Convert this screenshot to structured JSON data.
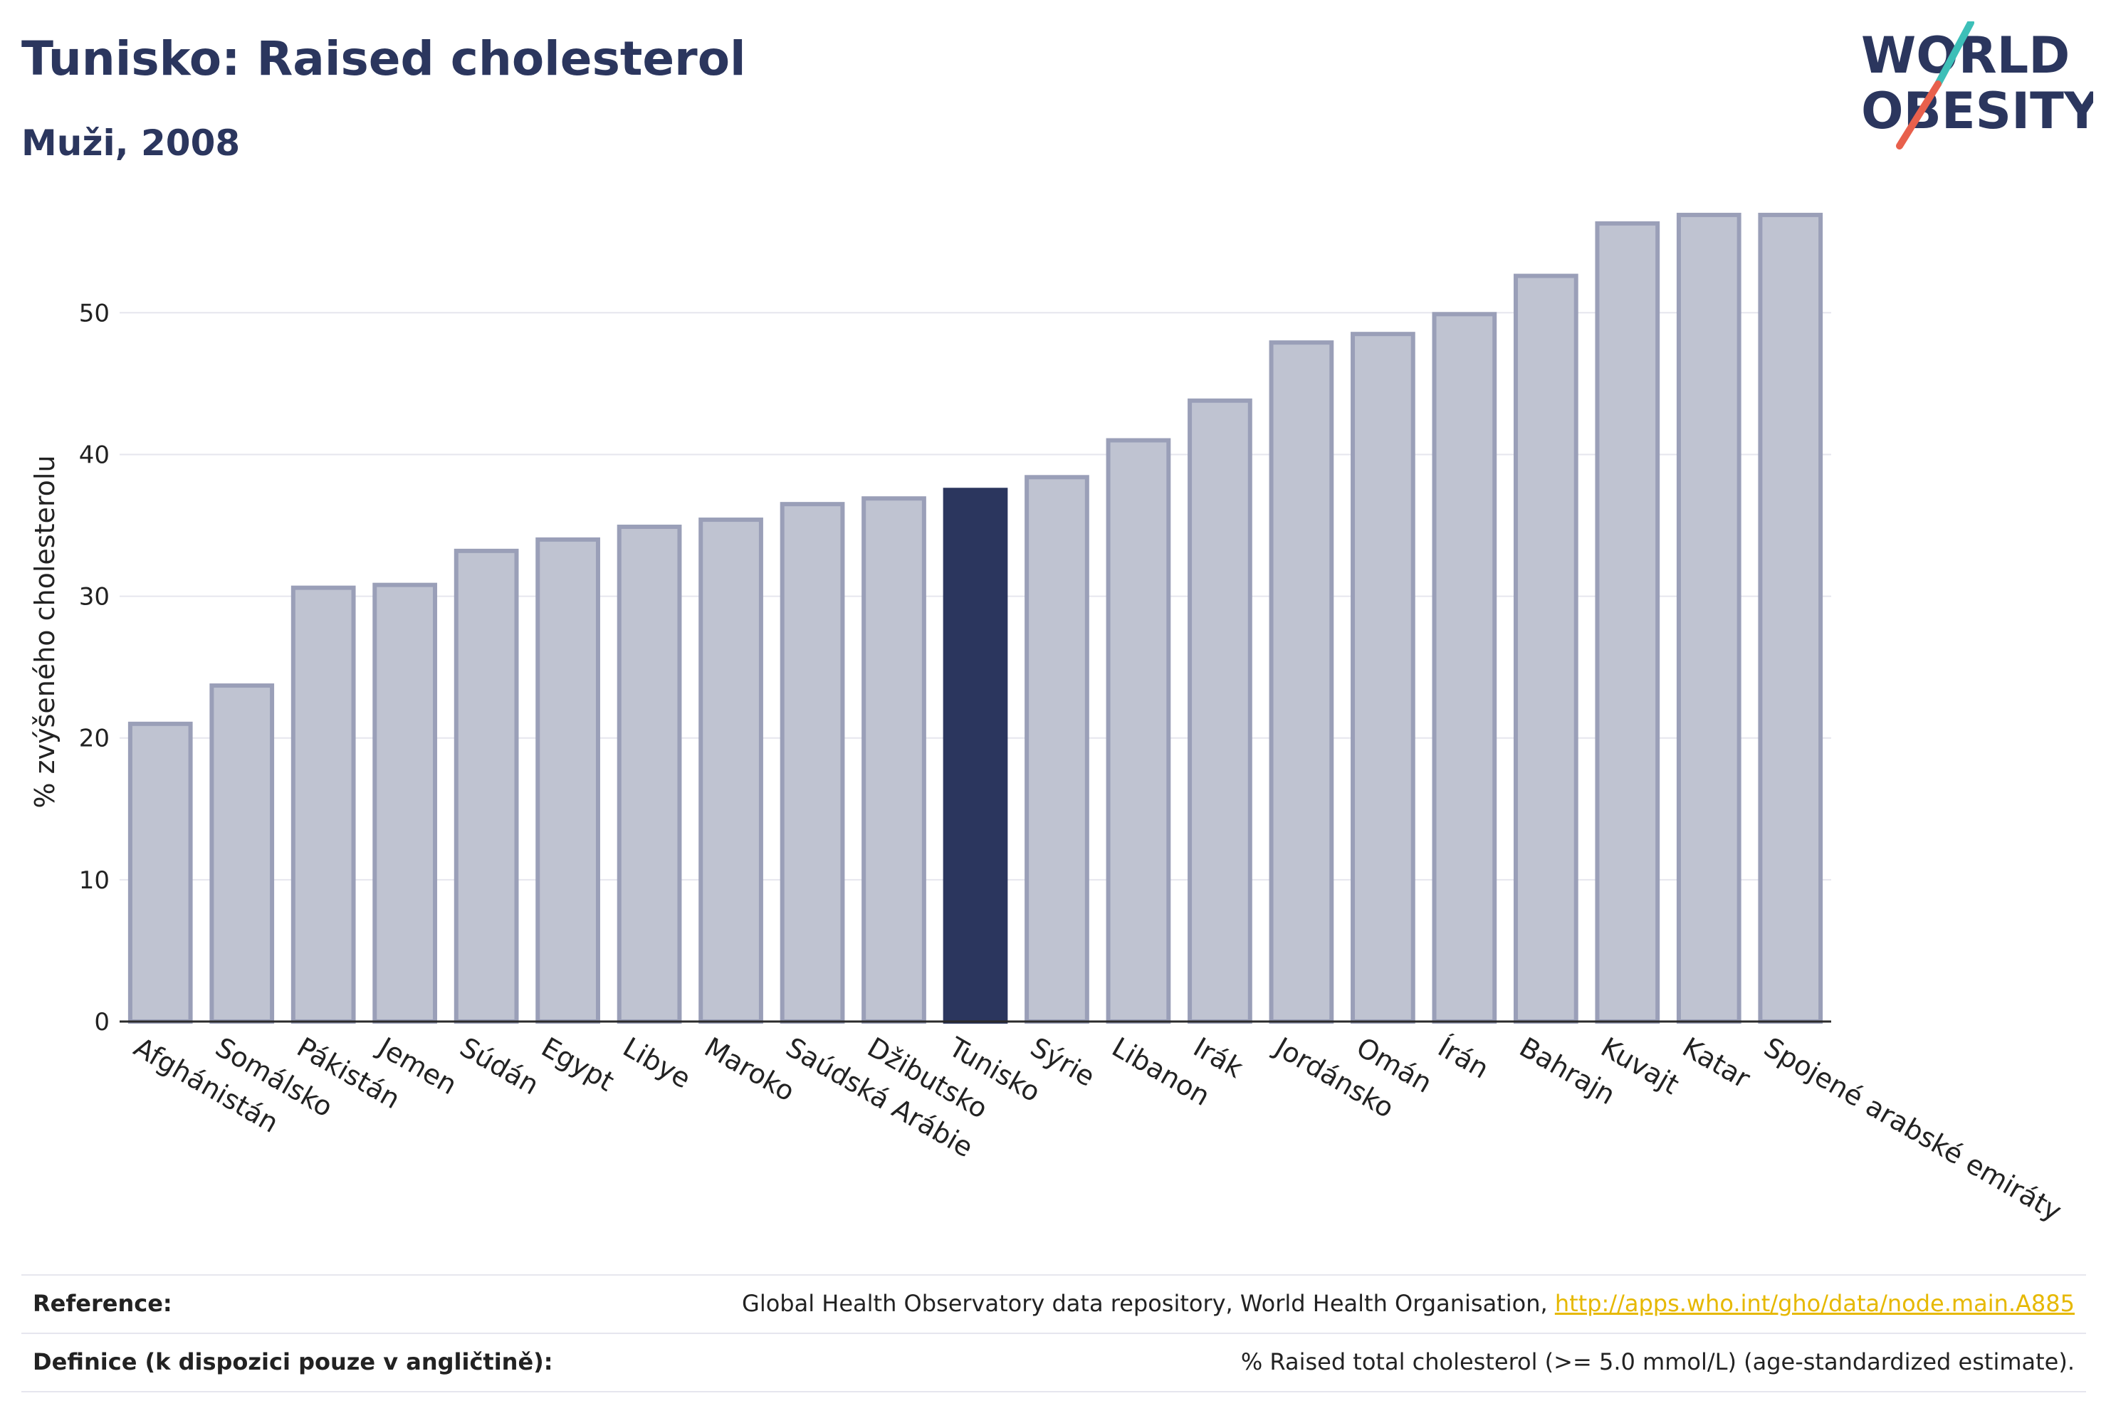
{
  "header": {
    "title": "Tunisko: Raised cholesterol",
    "subtitle": "Muži, 2008"
  },
  "logo": {
    "line1": "WORLD",
    "line2": "OBESITY",
    "accent_colors": [
      "#3dbfb8",
      "#e8604c"
    ]
  },
  "chart_data": {
    "type": "bar",
    "title": "Tunisko: Raised cholesterol",
    "subtitle": "Muži, 2008",
    "xlabel": "",
    "ylabel": "% zvýšeného cholesterolu",
    "ylim": [
      0,
      58
    ],
    "yticks": [
      0,
      10,
      20,
      30,
      40,
      50
    ],
    "grid": true,
    "highlight": "Tunisko",
    "colors": {
      "bar": "#bfc3d1",
      "bar_border": "#9a9fb8",
      "highlight": "#2b365e",
      "grid": "#e6e6ee",
      "axis": "#2b2b2b"
    },
    "categories": [
      "Afghánistán",
      "Somálsko",
      "Pákistán",
      "Jemen",
      "Súdán",
      "Egypt",
      "Libye",
      "Maroko",
      "Saúdská Arábie",
      "Džibutsko",
      "Tunisko",
      "Sýrie",
      "Libanon",
      "Irák",
      "Jordánsko",
      "Omán",
      "Írán",
      "Bahrajn",
      "Kuvajt",
      "Katar",
      "Spojené arabské emiráty"
    ],
    "values": [
      21.0,
      23.7,
      30.6,
      30.8,
      33.2,
      34.0,
      34.9,
      35.4,
      36.5,
      36.9,
      37.5,
      38.4,
      41.0,
      43.8,
      47.9,
      48.5,
      49.9,
      52.6,
      56.3,
      56.9,
      56.9
    ]
  },
  "footer": {
    "reference_label": "Reference:",
    "reference_text": "Global Health Observatory data repository, World Health Organisation, ",
    "reference_link": "http://apps.who.int/gho/data/node.main.A885",
    "definition_label": "Definice (k dispozici pouze v angličtině):",
    "definition_text": "% Raised total cholesterol (>= 5.0 mmol/L) (age-standardized estimate)."
  }
}
